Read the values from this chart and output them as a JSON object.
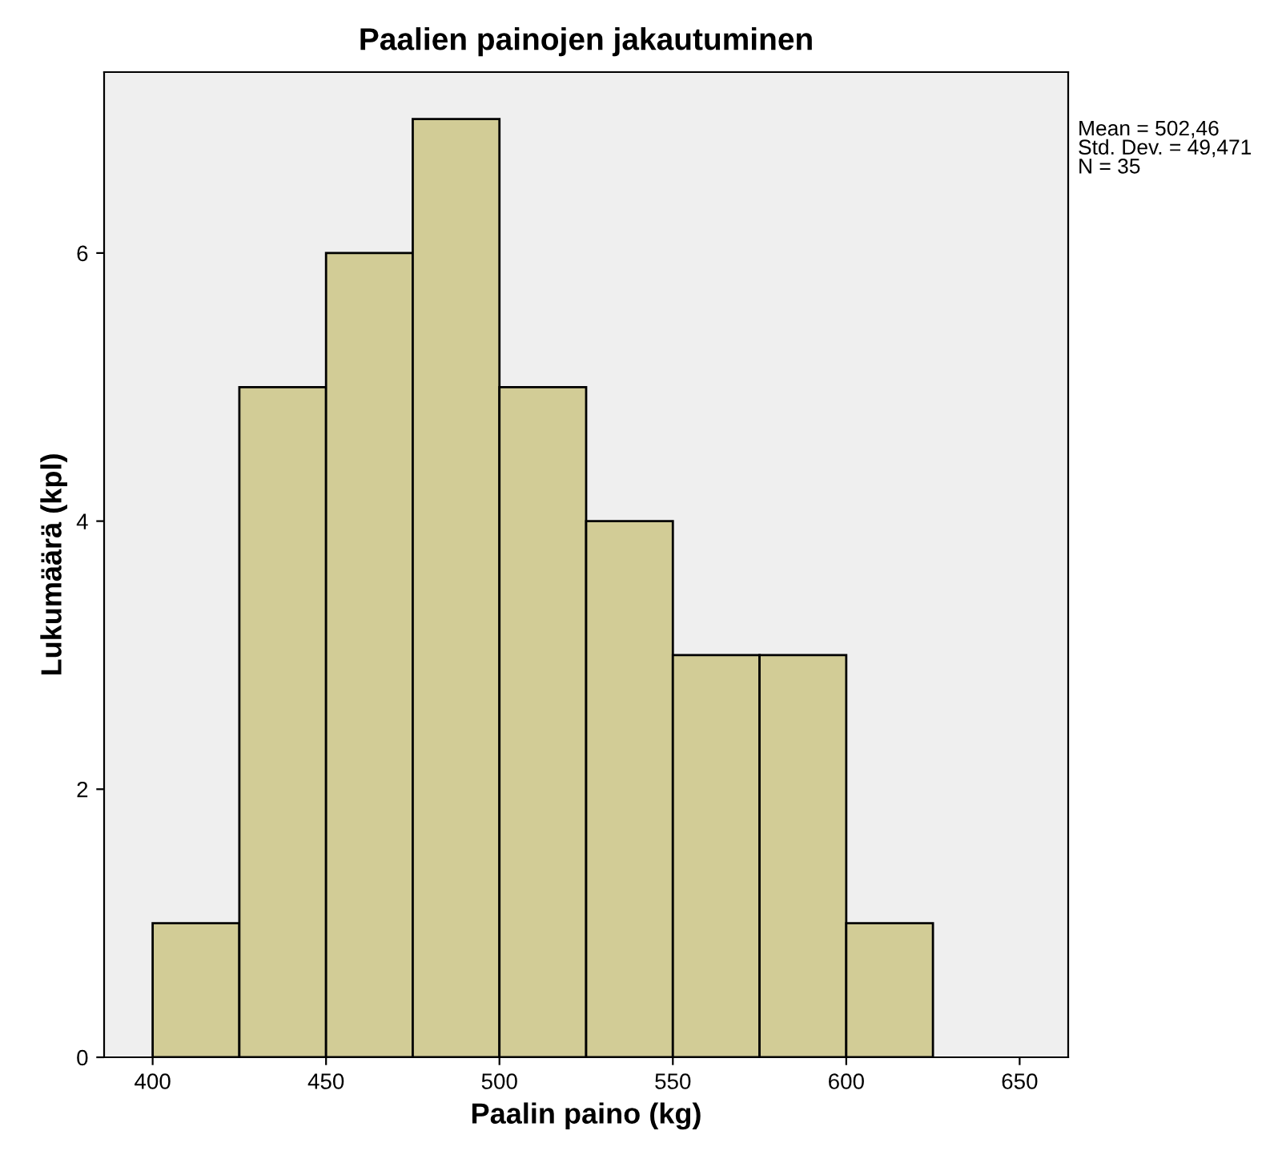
{
  "chart_data": {
    "type": "histogram",
    "title": "Paalien painojen jakautuminen",
    "xlabel": "Paalin paino (kg)",
    "ylabel": "Lukumäärä (kpl)",
    "bins": [
      400,
      425,
      450,
      475,
      500,
      525,
      550,
      575,
      600,
      625
    ],
    "values": [
      1,
      5,
      6,
      7,
      5,
      4,
      3,
      3,
      1
    ],
    "color": "#d2cc96",
    "xlim": [
      386,
      664
    ],
    "ylim": [
      0,
      7.35
    ],
    "xticks": [
      400,
      450,
      500,
      550,
      600,
      650
    ],
    "yticks": [
      0,
      2,
      4,
      6
    ],
    "annotations": [
      "Mean = 502,46\nStd. Dev. = 49,471\nN = 35"
    ],
    "grid": false,
    "legend": false
  }
}
